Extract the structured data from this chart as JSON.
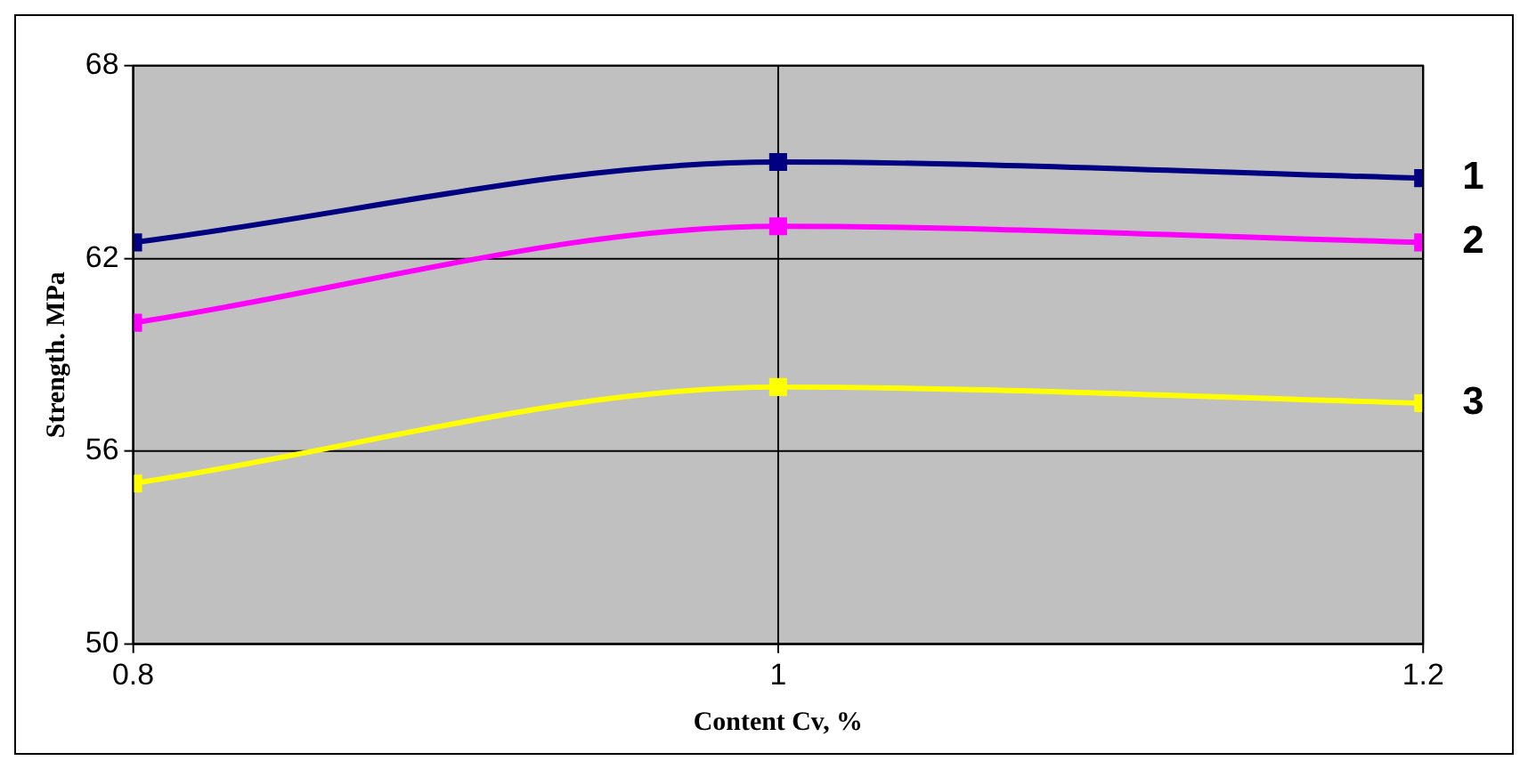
{
  "chart_data": {
    "type": "line",
    "xlabel": "Content Cv, %",
    "ylabel": "Strength. MPa",
    "x": [
      0.8,
      1,
      1.2
    ],
    "series": [
      {
        "name": "1",
        "color": "#000080",
        "values": [
          62.5,
          65,
          64.5
        ]
      },
      {
        "name": "2",
        "color": "#ff00ff",
        "values": [
          60,
          63,
          62.5
        ]
      },
      {
        "name": "3",
        "color": "#ffff00",
        "values": [
          55,
          58,
          57.5
        ]
      }
    ],
    "xlim": [
      0.8,
      1.2
    ],
    "xticks": [
      0.8,
      1,
      1.2
    ],
    "ylim": [
      50,
      68
    ],
    "yticks": [
      50,
      56,
      62,
      68
    ],
    "grid": true,
    "marker": "square",
    "line_style": "solid",
    "legend": false
  }
}
